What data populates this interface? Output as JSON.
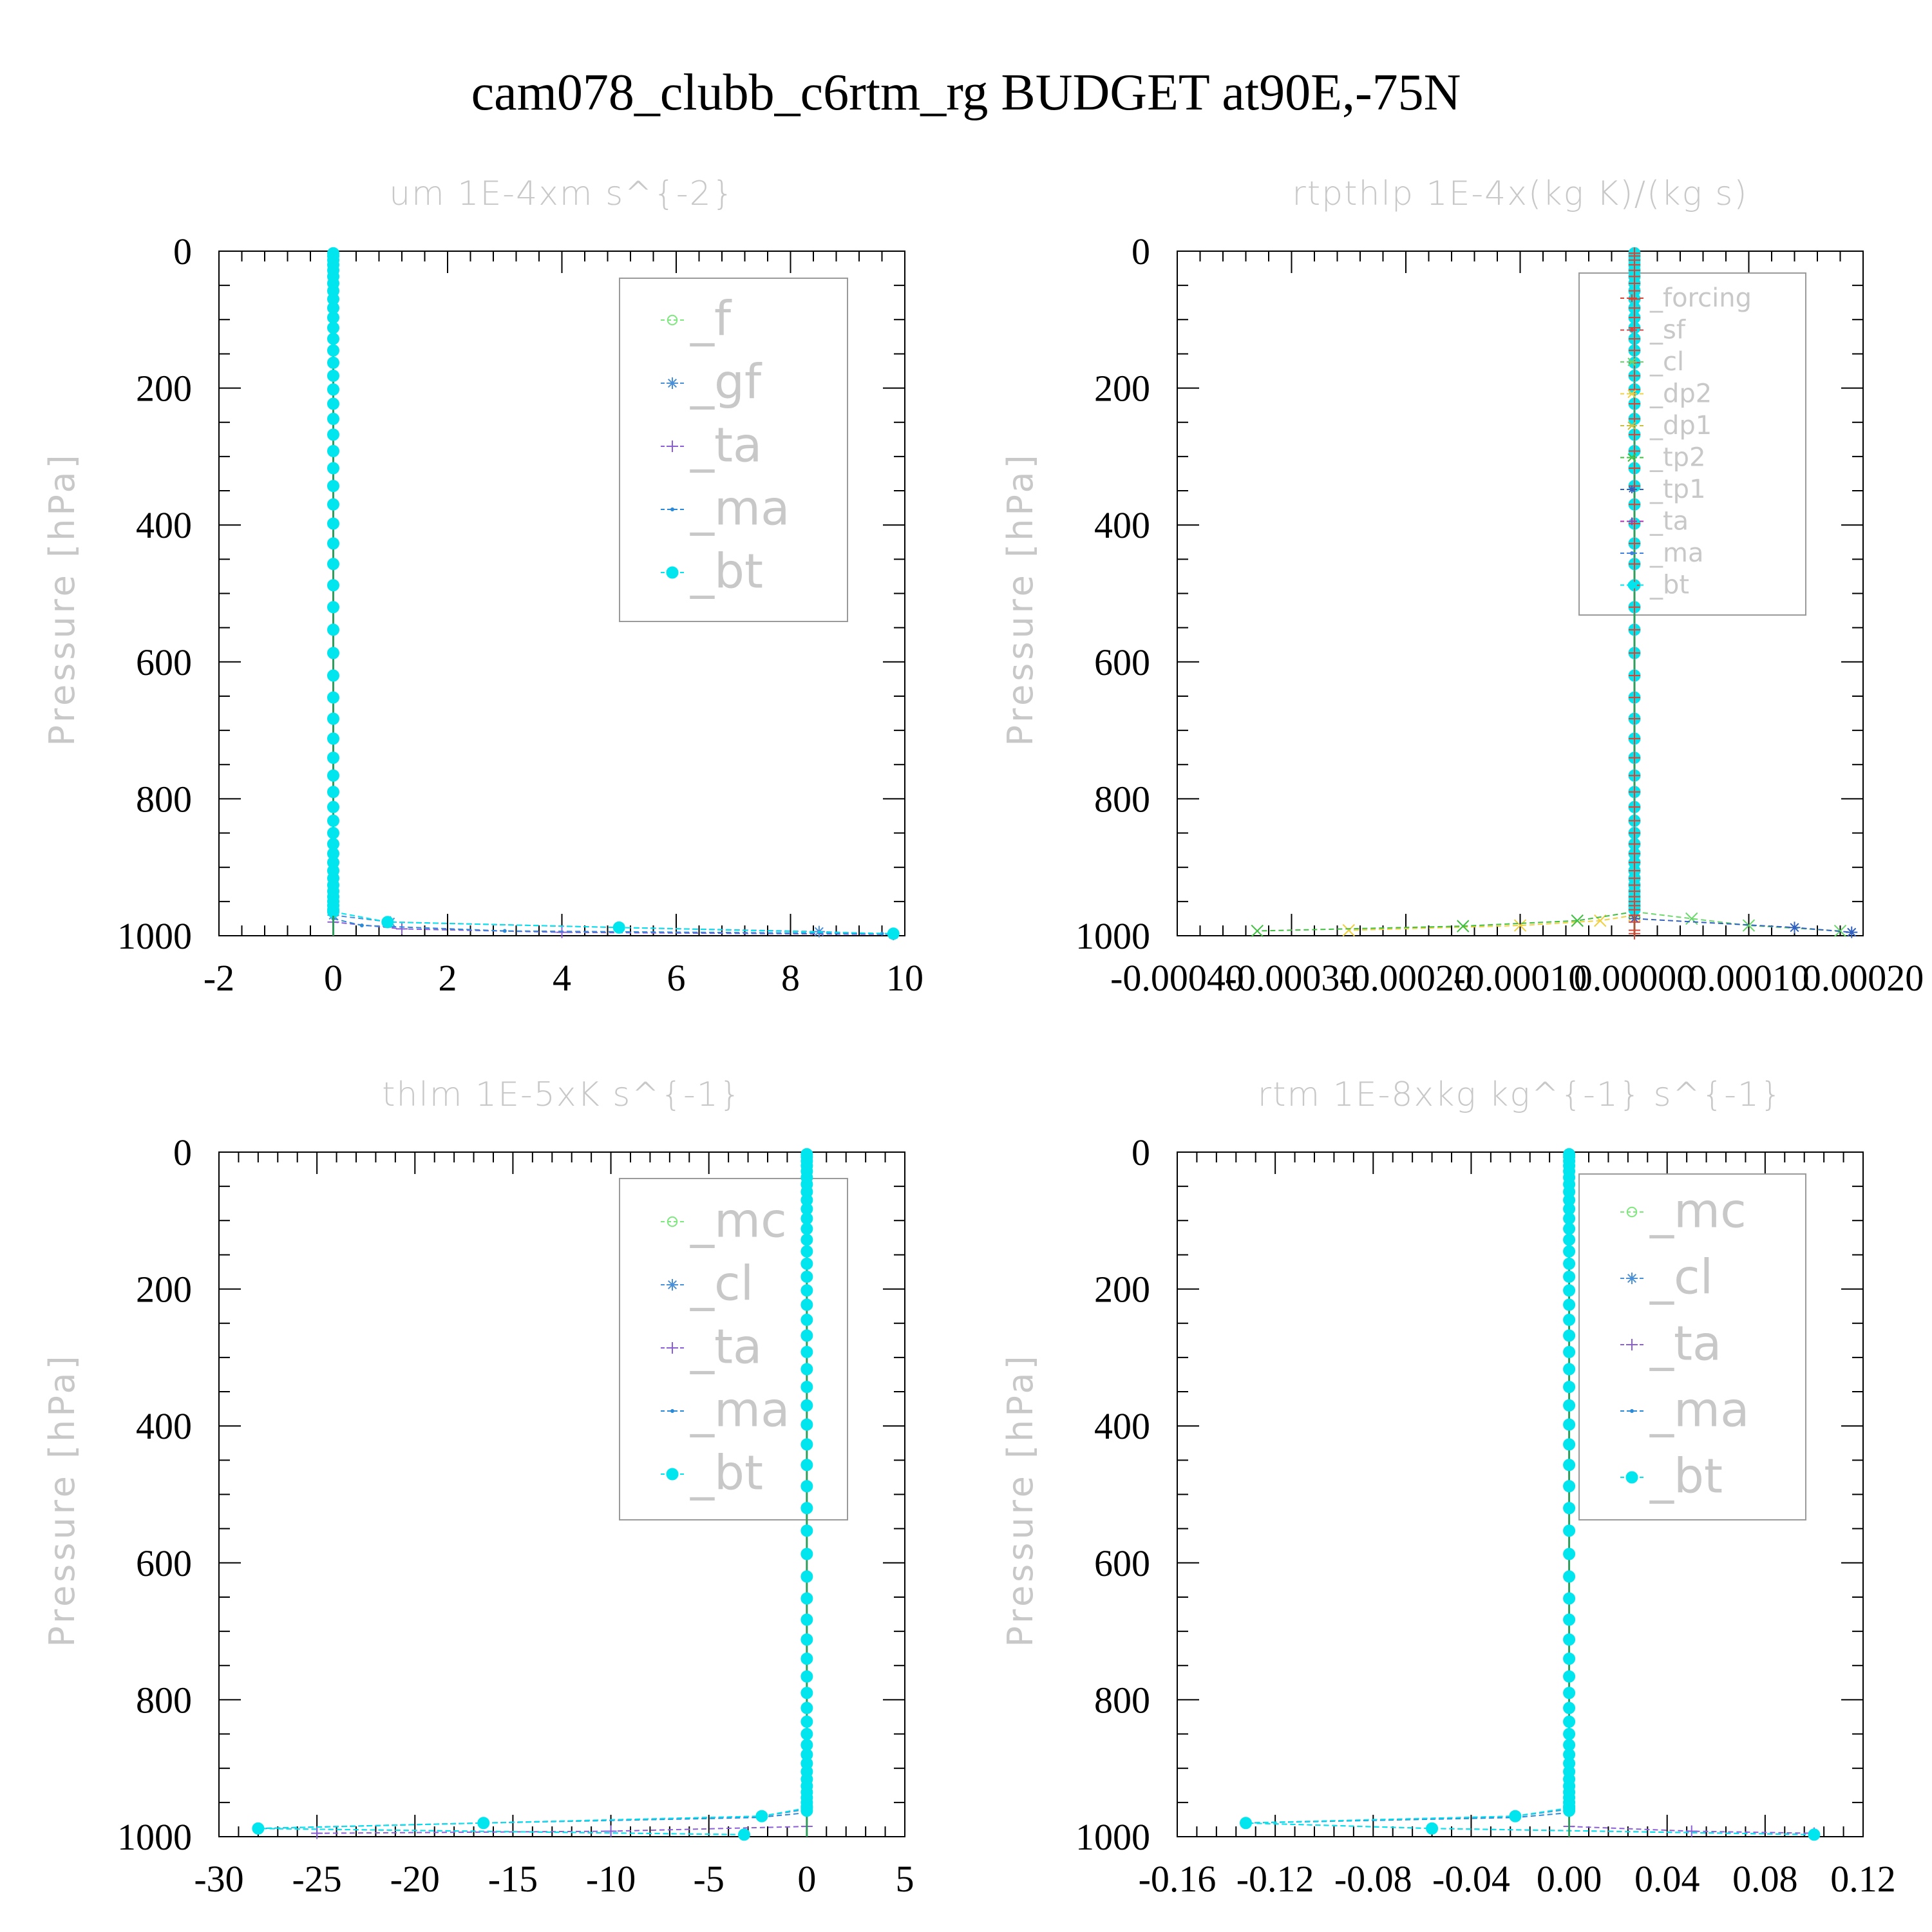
{
  "title": "cam078_clubb_c6rtm_rg  BUDGET at90E,-75N",
  "chart_data": [
    {
      "type": "line",
      "title": "um   1E-4xm  s^{-2}",
      "ylabel": "Pressure [hPa]",
      "xlim": [
        -2,
        10
      ],
      "ylim": [
        1000,
        0
      ],
      "xticks": [
        "-2",
        "0",
        "2",
        "4",
        "6",
        "8",
        "10"
      ],
      "yticks": [
        "0",
        "200",
        "400",
        "600",
        "800",
        "1000"
      ],
      "levels": [
        3,
        7,
        13,
        20,
        28,
        37,
        47,
        58,
        70,
        83,
        97,
        112,
        128,
        145,
        163,
        182,
        202,
        223,
        245,
        268,
        292,
        317,
        343,
        370,
        398,
        427,
        457,
        488,
        520,
        553,
        587,
        620,
        652,
        683,
        712,
        740,
        766,
        790,
        812,
        832,
        850,
        866,
        880,
        893,
        905,
        916,
        926,
        935,
        943,
        950,
        956,
        962,
        970,
        980,
        992,
        997
      ],
      "series": [
        {
          "name": "_f",
          "color": "#7ee87e",
          "marker": "circle-open",
          "points": [
            [
              0,
              1000
            ]
          ]
        },
        {
          "name": "_gf",
          "color": "#4a90d9",
          "marker": "star",
          "points": [
            [
              0,
              970
            ],
            [
              1.0,
              980
            ],
            [
              5.0,
              988
            ],
            [
              8.5,
              994
            ],
            [
              9.8,
              998
            ]
          ]
        },
        {
          "name": "_ta",
          "color": "#8a5fd8",
          "marker": "plus",
          "points": [
            [
              0,
              980
            ],
            [
              1.2,
              990
            ],
            [
              4,
              995
            ],
            [
              9.8,
              998
            ]
          ]
        },
        {
          "name": "_ma",
          "color": "#2a8ad8",
          "marker": "dot",
          "points": [
            [
              0,
              975
            ],
            [
              0.5,
              985
            ],
            [
              3,
              993
            ],
            [
              9.6,
              997
            ]
          ]
        },
        {
          "name": "_bt",
          "color": "#00e5ee",
          "marker": "circle-filled",
          "points": [
            [
              0,
              965
            ],
            [
              0.95,
              980
            ],
            [
              5.0,
              988
            ],
            [
              9.8,
              997
            ]
          ]
        }
      ]
    },
    {
      "type": "line",
      "title": "rtpthlp   1E-4x(kg K)/(kg s)",
      "ylabel": "Pressure [hPa]",
      "xlim": [
        -0.0004,
        0.0002
      ],
      "ylim": [
        1000,
        0
      ],
      "xticks": [
        "-0.00040",
        "-0.00030",
        "-0.00020",
        "-0.00010",
        "0.00000",
        "0.00010",
        "0.00020"
      ],
      "yticks": [
        "0",
        "200",
        "400",
        "600",
        "800",
        "1000"
      ],
      "levels": [
        3,
        7,
        13,
        20,
        28,
        37,
        47,
        58,
        70,
        83,
        97,
        112,
        128,
        145,
        163,
        182,
        202,
        223,
        245,
        268,
        292,
        317,
        343,
        370,
        398,
        427,
        457,
        488,
        520,
        553,
        587,
        620,
        652,
        683,
        712,
        740,
        766,
        790,
        812,
        832,
        850,
        866,
        880,
        893,
        905,
        916,
        926,
        935,
        943,
        950,
        956,
        962,
        970,
        980,
        992,
        997
      ],
      "series": [
        {
          "name": "_forcing",
          "color": "#e04030",
          "marker": "plus",
          "points": [
            [
              0,
              1000
            ]
          ]
        },
        {
          "name": "_sf",
          "color": "#d04848",
          "marker": "dot",
          "points": [
            [
              0,
              1000
            ]
          ]
        },
        {
          "name": "_cl",
          "color": "#6ad86a",
          "marker": "x",
          "points": [
            [
              0,
              965
            ],
            [
              5e-05,
              975
            ],
            [
              0.0001,
              985
            ],
            [
              0.00018,
              993
            ]
          ]
        },
        {
          "name": "_dp2",
          "color": "#f0d040",
          "marker": "x",
          "points": [
            [
              0,
              970
            ],
            [
              -3e-05,
              978
            ],
            [
              -0.0001,
              985
            ],
            [
              -0.00025,
              992
            ]
          ]
        },
        {
          "name": "_dp1",
          "color": "#c8c040",
          "marker": "x",
          "points": [
            [
              0,
              1000
            ]
          ]
        },
        {
          "name": "_tp2",
          "color": "#40c040",
          "marker": "x",
          "points": [
            [
              0,
              965
            ],
            [
              -5e-05,
              978
            ],
            [
              -0.00015,
              986
            ],
            [
              -0.00033,
              993
            ]
          ]
        },
        {
          "name": "_tp1",
          "color": "#3060c0",
          "marker": "star",
          "points": [
            [
              0,
              975
            ],
            [
              0.00014,
              988
            ],
            [
              0.00019,
              995
            ]
          ]
        },
        {
          "name": "_ta",
          "color": "#b030b0",
          "marker": "plus",
          "points": [
            [
              0,
              1000
            ]
          ]
        },
        {
          "name": "_ma",
          "color": "#4080e0",
          "marker": "dot",
          "points": [
            [
              0,
              1000
            ]
          ]
        },
        {
          "name": "_bt",
          "color": "#00e5ee",
          "marker": "circle-filled",
          "points": [
            [
              0,
              1000
            ]
          ]
        }
      ]
    },
    {
      "type": "line",
      "title": "thlm   1E-5xK  s^{-1}",
      "ylabel": "Pressure [hPa]",
      "xlim": [
        -30,
        5
      ],
      "ylim": [
        1000,
        0
      ],
      "xticks": [
        "-30",
        "-25",
        "-20",
        "-15",
        "-10",
        "-5",
        "0",
        "5"
      ],
      "yticks": [
        "0",
        "200",
        "400",
        "600",
        "800",
        "1000"
      ],
      "levels": [
        3,
        7,
        13,
        20,
        28,
        37,
        47,
        58,
        70,
        83,
        97,
        112,
        128,
        145,
        163,
        182,
        202,
        223,
        245,
        268,
        292,
        317,
        343,
        370,
        398,
        427,
        457,
        488,
        520,
        553,
        587,
        620,
        652,
        683,
        712,
        740,
        766,
        790,
        812,
        832,
        850,
        866,
        880,
        893,
        905,
        916,
        926,
        935,
        943,
        950,
        956,
        962,
        970,
        980,
        992,
        997
      ],
      "series": [
        {
          "name": "_mc",
          "color": "#7ee87e",
          "marker": "circle-open",
          "points": [
            [
              0,
              1000
            ]
          ]
        },
        {
          "name": "_cl",
          "color": "#4a90d9",
          "marker": "star",
          "points": [
            [
              0,
              960
            ],
            [
              -2.3,
              970
            ],
            [
              -16.5,
              980
            ],
            [
              -28.0,
              988
            ],
            [
              -3.2,
              997
            ]
          ]
        },
        {
          "name": "_ta",
          "color": "#8a5fd8",
          "marker": "plus",
          "points": [
            [
              0,
              985
            ],
            [
              -10,
              992
            ],
            [
              -25,
              995
            ]
          ]
        },
        {
          "name": "_ma",
          "color": "#2a8ad8",
          "marker": "dot",
          "points": [
            [
              0,
              965
            ],
            [
              -2.5,
              972
            ],
            [
              -16.5,
              980
            ],
            [
              -28.0,
              988
            ]
          ]
        },
        {
          "name": "_bt",
          "color": "#00e5ee",
          "marker": "circle-filled",
          "points": [
            [
              0,
              958
            ],
            [
              -2.3,
              970
            ],
            [
              -16.5,
              980
            ],
            [
              -28.0,
              988
            ],
            [
              -3.2,
              997
            ]
          ]
        }
      ]
    },
    {
      "type": "line",
      "title": "rtm   1E-8xkg  kg^{-1}  s^{-1}",
      "ylabel": "Pressure [hPa]",
      "xlim": [
        -0.16,
        0.12
      ],
      "ylim": [
        1000,
        0
      ],
      "xticks": [
        "-0.16",
        "-0.12",
        "-0.08",
        "-0.04",
        "0.00",
        "0.04",
        "0.08",
        "0.12"
      ],
      "yticks": [
        "0",
        "200",
        "400",
        "600",
        "800",
        "1000"
      ],
      "levels": [
        3,
        7,
        13,
        20,
        28,
        37,
        47,
        58,
        70,
        83,
        97,
        112,
        128,
        145,
        163,
        182,
        202,
        223,
        245,
        268,
        292,
        317,
        343,
        370,
        398,
        427,
        457,
        488,
        520,
        553,
        587,
        620,
        652,
        683,
        712,
        740,
        766,
        790,
        812,
        832,
        850,
        866,
        880,
        893,
        905,
        916,
        926,
        935,
        943,
        950,
        956,
        962,
        970,
        980,
        992,
        997
      ],
      "series": [
        {
          "name": "_mc",
          "color": "#7ee87e",
          "marker": "circle-open",
          "points": [
            [
              0,
              1000
            ]
          ]
        },
        {
          "name": "_cl",
          "color": "#4a90d9",
          "marker": "star",
          "points": [
            [
              0,
              960
            ],
            [
              -0.022,
              970
            ],
            [
              -0.132,
              980
            ],
            [
              -0.056,
              988
            ],
            [
              0.1,
              997
            ]
          ]
        },
        {
          "name": "_ta",
          "color": "#8a5fd8",
          "marker": "plus",
          "points": [
            [
              0,
              985
            ],
            [
              0.05,
              992
            ],
            [
              0.1,
              995
            ]
          ]
        },
        {
          "name": "_ma",
          "color": "#2a8ad8",
          "marker": "dot",
          "points": [
            [
              0,
              965
            ],
            [
              -0.022,
              972
            ],
            [
              -0.132,
              980
            ]
          ]
        },
        {
          "name": "_bt",
          "color": "#00e5ee",
          "marker": "circle-filled",
          "points": [
            [
              0,
              958
            ],
            [
              -0.022,
              970
            ],
            [
              -0.132,
              980
            ],
            [
              -0.056,
              988
            ],
            [
              0.1,
              997
            ]
          ]
        }
      ]
    }
  ]
}
